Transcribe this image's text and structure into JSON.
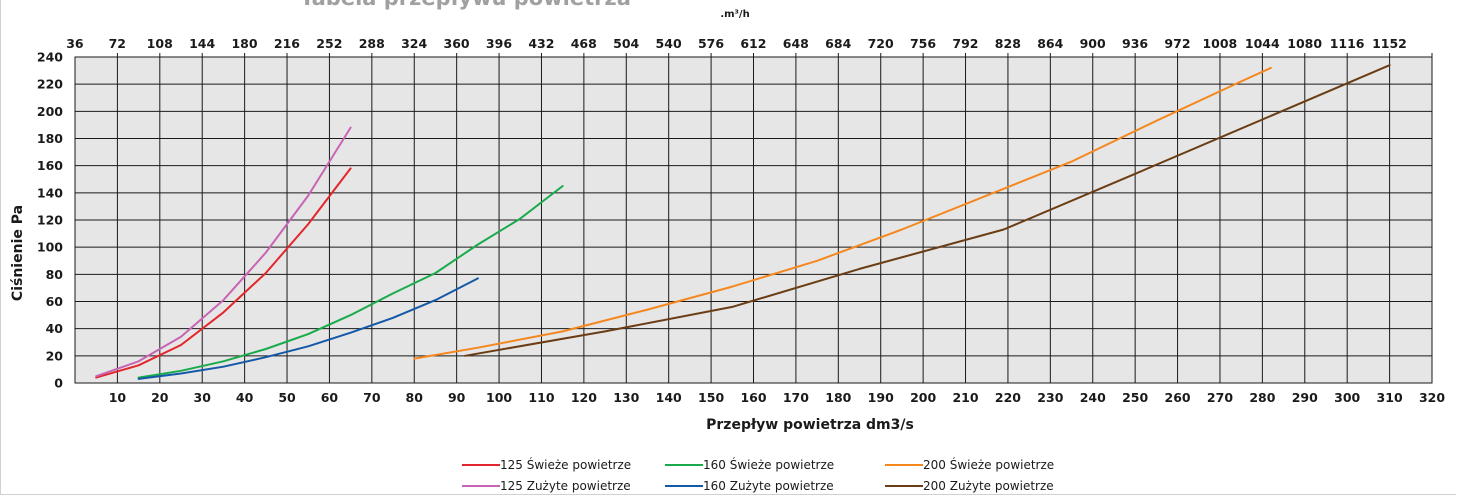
{
  "chart_data": {
    "type": "line",
    "title": "Tabela przepływu powietrza",
    "xlabel": "Przepływ powietrza dm3/s",
    "ylabel": "Ciśnienie Pa",
    "x2label": ".m³/h",
    "xlim": [
      0,
      320
    ],
    "ylim": [
      0,
      240
    ],
    "x_ticks": [
      "10",
      "20",
      "30",
      "40",
      "50",
      "60",
      "70",
      "80",
      "90",
      "100",
      "110",
      "120",
      "130",
      "140",
      "150",
      "160",
      "170",
      "180",
      "190",
      "200",
      "210",
      "220",
      "230",
      "240",
      "250",
      "260",
      "270",
      "280",
      "290",
      "300",
      "310",
      "320"
    ],
    "y_ticks": [
      "0",
      "20",
      "40",
      "60",
      "80",
      "100",
      "120",
      "140",
      "160",
      "180",
      "200",
      "220",
      "240"
    ],
    "x2_ticks": [
      "36",
      "72",
      "108",
      "144",
      "180",
      "216",
      "252",
      "288",
      "324",
      "360",
      "396",
      "432",
      "468",
      "504",
      "540",
      "576",
      "612",
      "648",
      "684",
      "720",
      "756",
      "792",
      "828",
      "864",
      "900",
      "936",
      "972",
      "1008",
      "1044",
      "1080",
      "1116",
      "1152"
    ],
    "grid": true,
    "legend_position": "bottom",
    "series": [
      {
        "name": "125 Świeże powietrze",
        "color": "#e3262b",
        "x": [
          5,
          15,
          25,
          35,
          45,
          55,
          65
        ],
        "y": [
          4,
          13,
          28,
          52,
          81,
          117,
          158
        ]
      },
      {
        "name": "125 Zużyte powietrze",
        "color": "#c864b4",
        "x": [
          5,
          15,
          25,
          35,
          45,
          55,
          65
        ],
        "y": [
          5,
          16,
          34,
          61,
          96,
          138,
          188
        ]
      },
      {
        "name": "160 Świeże powietrze",
        "color": "#19ab4b",
        "x": [
          15,
          25,
          35,
          45,
          55,
          65,
          75,
          85,
          95,
          105,
          115
        ],
        "y": [
          4,
          9,
          16,
          25,
          36,
          50,
          66,
          81,
          102,
          121,
          145
        ]
      },
      {
        "name": "160 Zużyte powietrze",
        "color": "#1459a8",
        "x": [
          15,
          25,
          35,
          45,
          55,
          65,
          75,
          85,
          95
        ],
        "y": [
          3,
          7,
          12,
          19,
          27,
          37,
          48,
          61,
          77
        ]
      },
      {
        "name": "200 Świeże powietrze",
        "color": "#f5871f",
        "x": [
          80,
          95,
          115,
          135,
          155,
          175,
          195,
          215,
          235,
          255,
          275,
          282
        ],
        "y": [
          18,
          26,
          38,
          54,
          71,
          90,
          113,
          138,
          163,
          193,
          222,
          232
        ]
      },
      {
        "name": "200 Zużyte powietrze",
        "color": "#6b3d14",
        "x": [
          92,
          125,
          155,
          185,
          219,
          250,
          280,
          310
        ],
        "y": [
          20,
          38,
          56,
          84,
          113,
          154,
          194,
          234
        ]
      }
    ]
  }
}
